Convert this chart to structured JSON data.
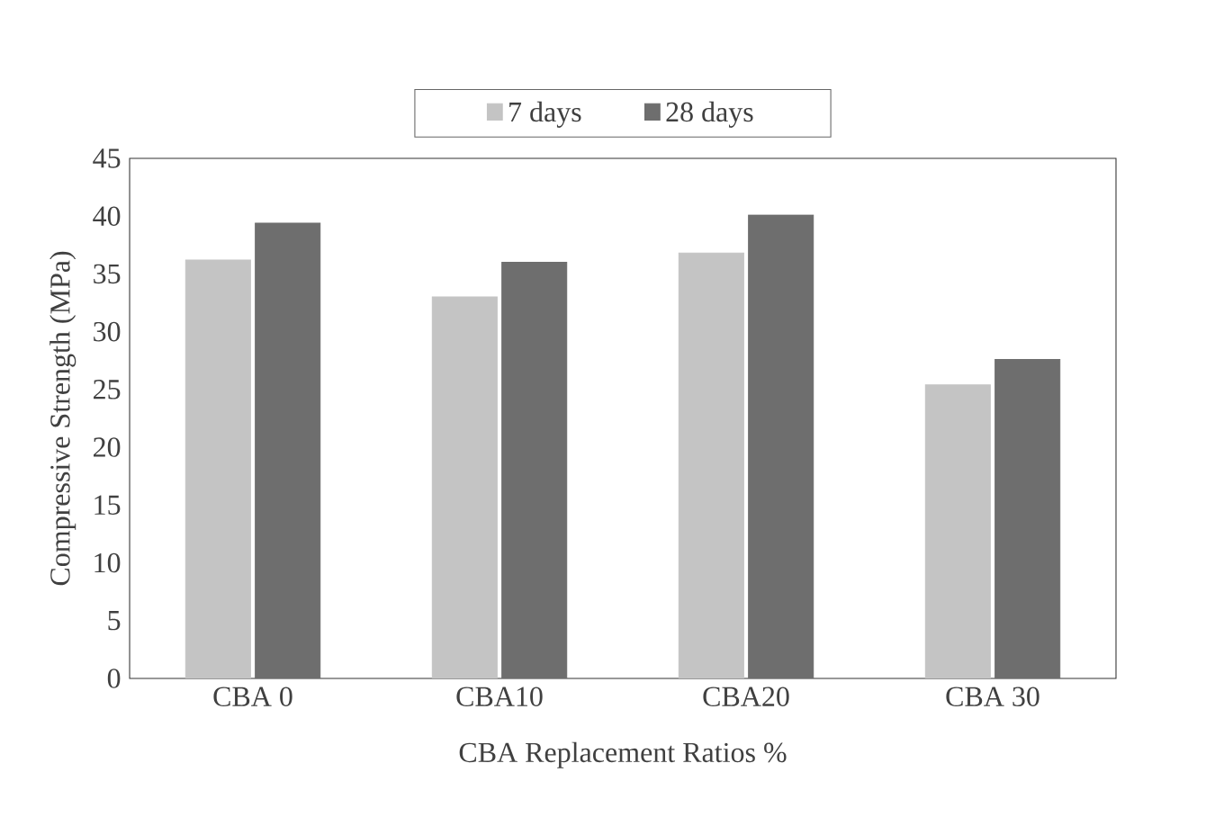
{
  "chart_data": {
    "type": "bar",
    "xlabel": "CBA Replacement Ratios %",
    "ylabel": "Compressive Strength  (MPa)",
    "categories": [
      "CBA 0",
      "CBA10",
      "CBA20",
      "CBA 30"
    ],
    "series": [
      {
        "name": "7 days",
        "color": "#c4c4c4",
        "values": [
          36.2,
          33.0,
          36.8,
          25.4
        ]
      },
      {
        "name": "28 days",
        "color": "#6e6e6e",
        "values": [
          39.4,
          36.0,
          40.1,
          27.6
        ]
      }
    ],
    "ylim": [
      0,
      45
    ],
    "yticks": [
      0,
      5,
      10,
      15,
      20,
      25,
      30,
      35,
      40,
      45
    ],
    "grid": false,
    "legend": "top"
  }
}
